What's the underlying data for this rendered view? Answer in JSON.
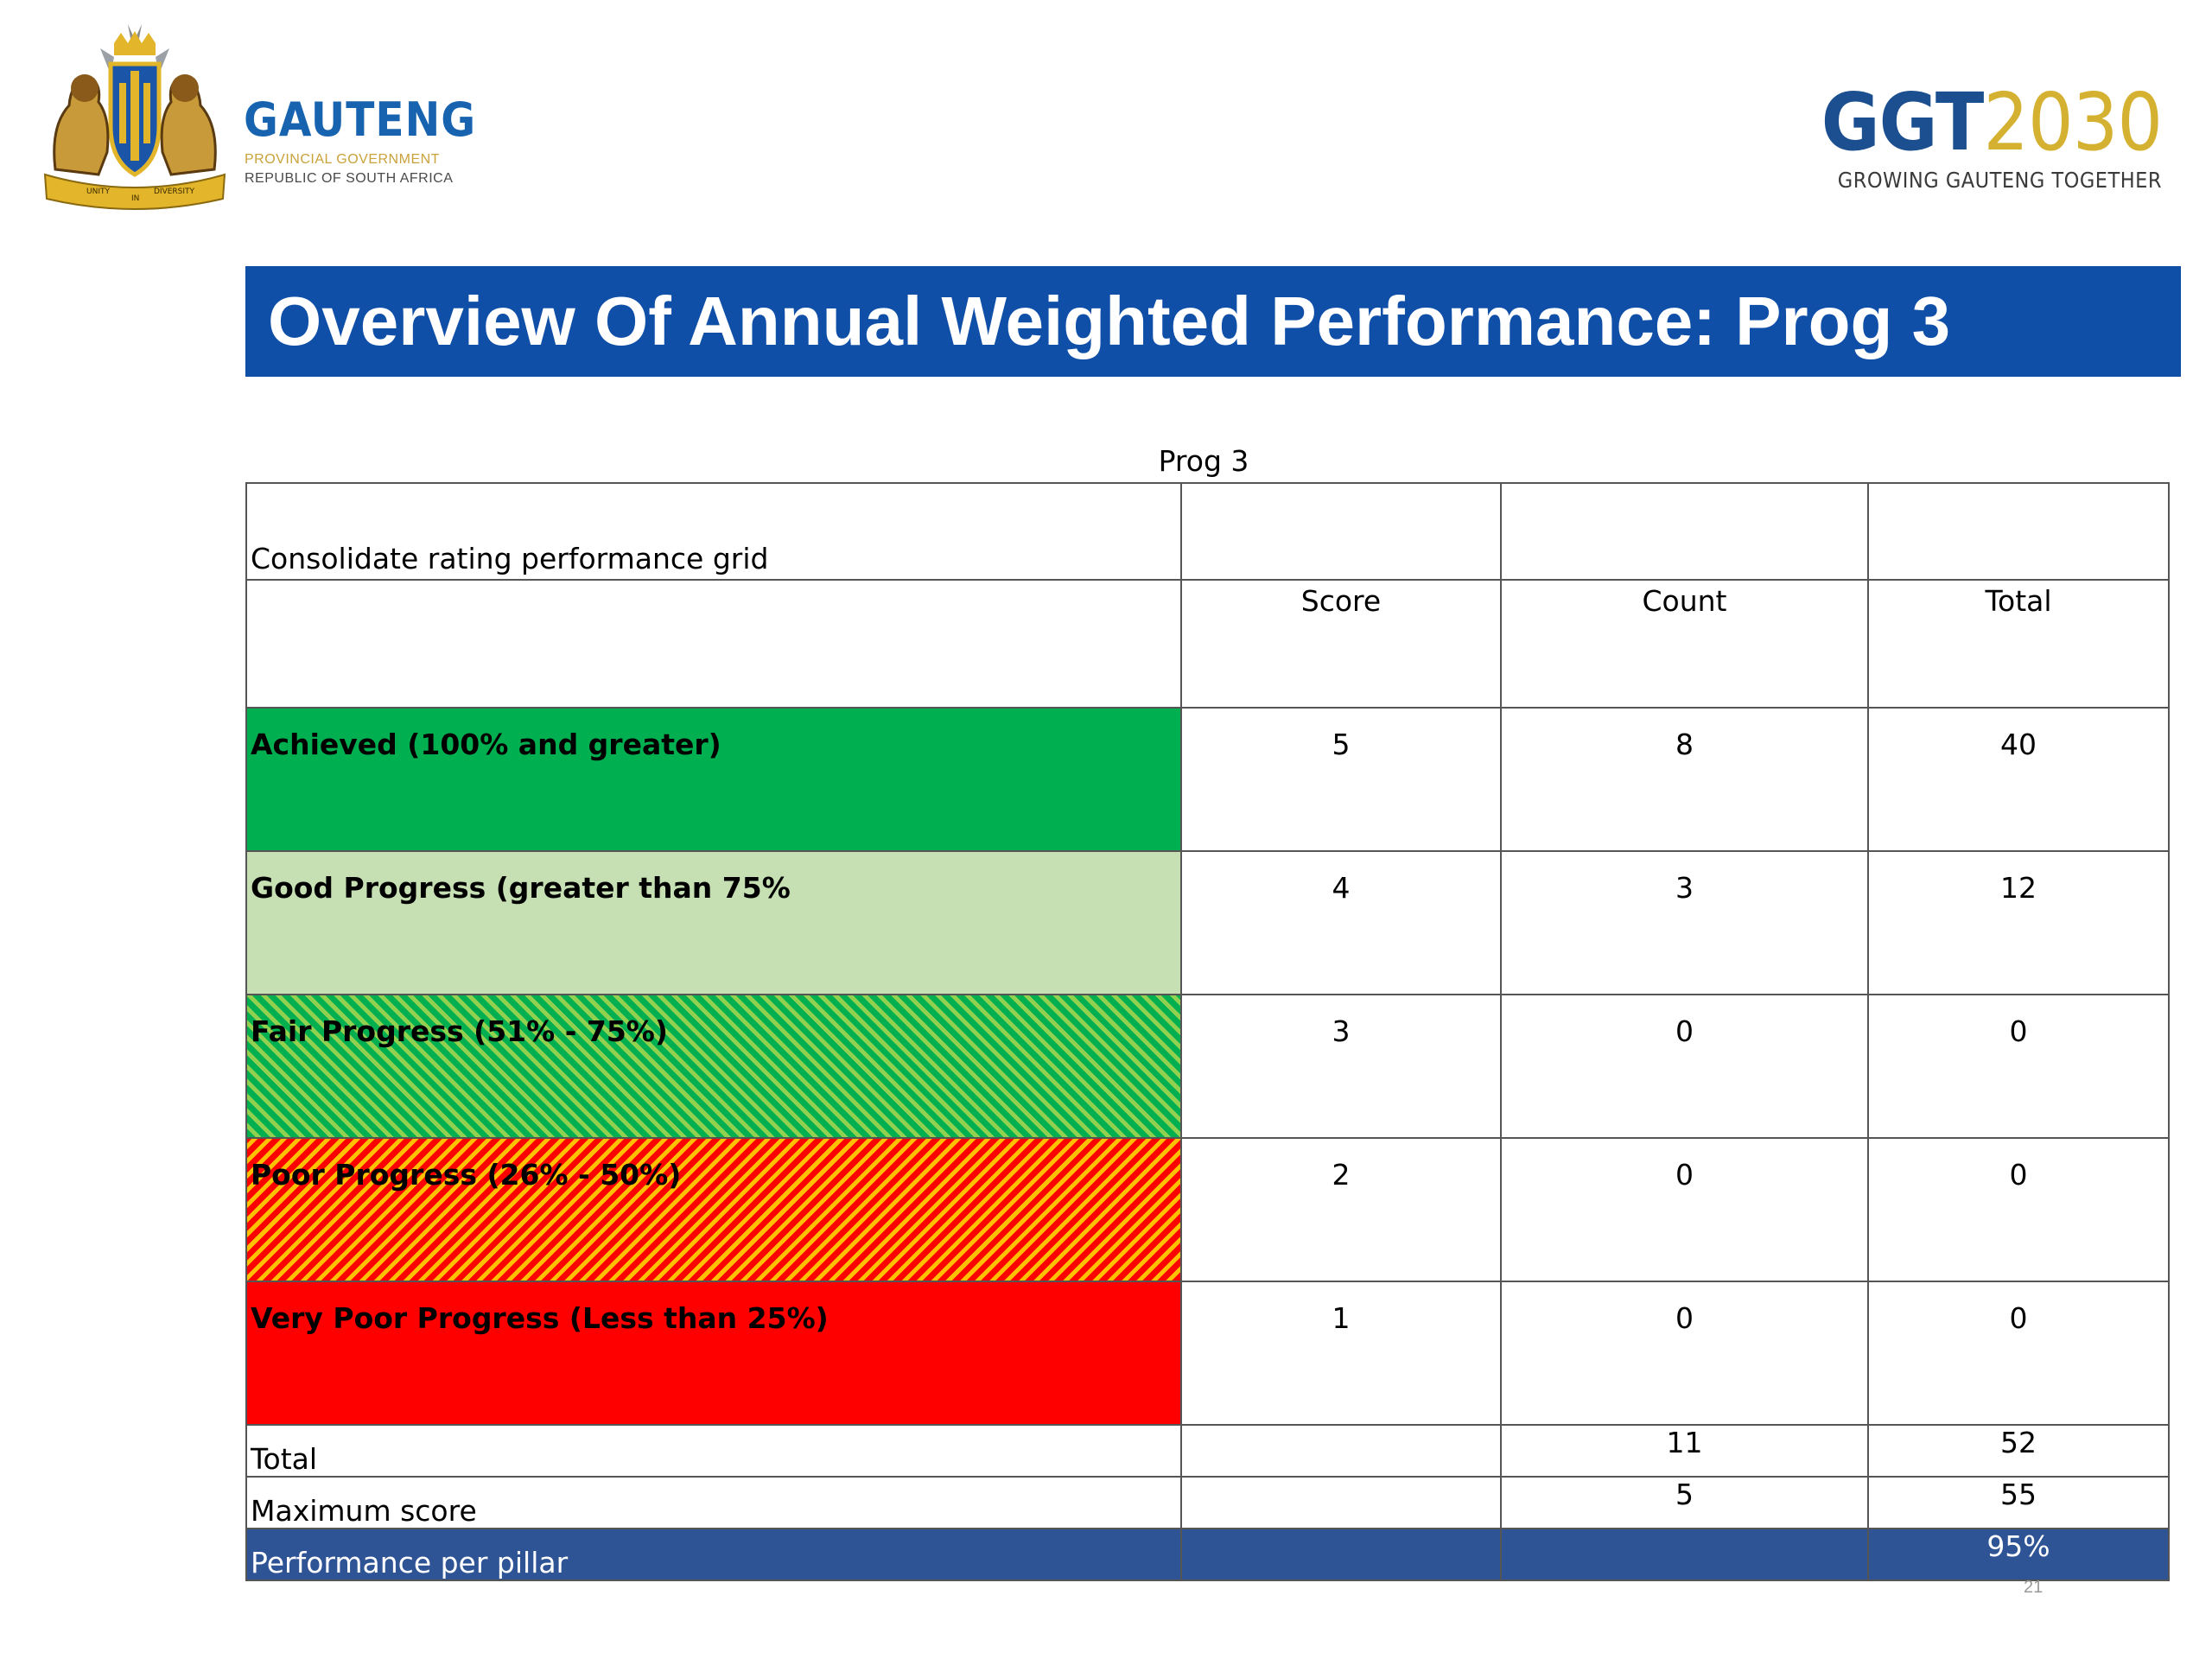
{
  "header": {
    "gov_logo": {
      "name": "GAUTENG",
      "line1": "PROVINCIAL GOVERNMENT",
      "line2": "REPUBLIC OF SOUTH AFRICA",
      "crest_motto_left": "UNITY",
      "crest_motto_center": "IN",
      "crest_motto_right": "DIVERSITY"
    },
    "ggt_logo": {
      "part_a": "GGT",
      "part_b": "2030",
      "tagline": "GROWING GAUTENG TOGETHER"
    },
    "title": "Overview Of Annual Weighted Performance: Prog 3"
  },
  "table": {
    "caption": "Prog 3",
    "grid_label": "Consolidate rating performance grid",
    "columns": [
      "Score",
      "Count",
      "Total"
    ],
    "rows": [
      {
        "label": "Achieved (100%  and greater)",
        "score": "5",
        "count": "8",
        "total": "40"
      },
      {
        "label": "Good Progress (greater than 75%",
        "score": "4",
        "count": "3",
        "total": "12"
      },
      {
        "label": "Fair Progress (51% - 75%)",
        "score": "3",
        "count": "0",
        "total": "0"
      },
      {
        "label": "Poor Progress (26% - 50%)",
        "score": "2",
        "count": "0",
        "total": "0"
      },
      {
        "label": "Very Poor Progress (Less than 25%)",
        "score": "1",
        "count": "0",
        "total": "0"
      }
    ],
    "summary": {
      "total_label": "Total",
      "total_count": "11",
      "total_total": "52",
      "max_label": "Maximum score",
      "max_count": "5",
      "max_total": "55",
      "perf_label": "Performance per pillar",
      "perf_value": "95%"
    }
  },
  "footer": {
    "page_number": "21"
  },
  "colors": {
    "title_bar": "#0f4fa8",
    "achieved": "#00b050",
    "good": "#c6e0b4",
    "fair": "#92d050",
    "poor": "#ffc000",
    "very_poor": "#ff0000",
    "perf_row": "#2f5496"
  }
}
